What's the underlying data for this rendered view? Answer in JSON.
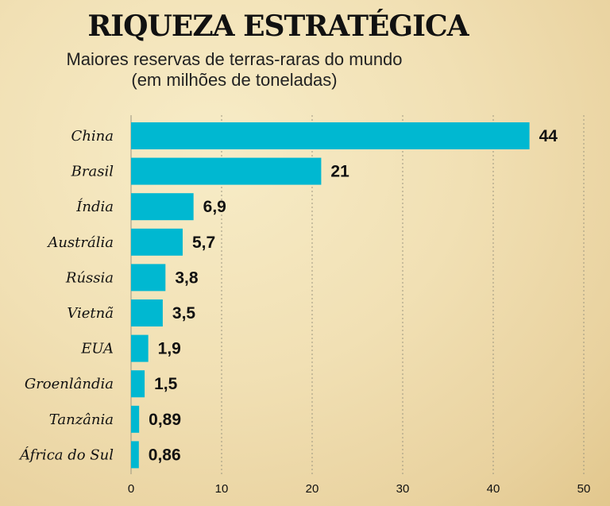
{
  "chart_data": {
    "type": "bar",
    "orientation": "horizontal",
    "title": "RIQUEZA ESTRATÉGICA",
    "subtitle_lines": [
      "Maiores reservas de terras-raras do mundo",
      "(em milhões de toneladas)"
    ],
    "categories": [
      "China",
      "Brasil",
      "Índia",
      "Austrália",
      "Rússia",
      "Vietnã",
      "EUA",
      "Groenlândia",
      "Tanzânia",
      "África do Sul"
    ],
    "values": [
      44,
      21,
      6.9,
      5.7,
      3.8,
      3.5,
      1.9,
      1.5,
      0.89,
      0.86
    ],
    "value_labels": [
      "44",
      "21",
      "6,9",
      "5,7",
      "3,8",
      "3,5",
      "1,9",
      "1,5",
      "0,89",
      "0,86"
    ],
    "xlim": [
      0,
      50
    ],
    "xticks": [
      0,
      10,
      20,
      30,
      40,
      50
    ],
    "xtick_labels": [
      "0",
      "10",
      "20",
      "30",
      "40",
      "50"
    ],
    "grid": "vertical dashed",
    "colors": {
      "bar": "#00b8d1",
      "grid": "#9c9680"
    }
  }
}
